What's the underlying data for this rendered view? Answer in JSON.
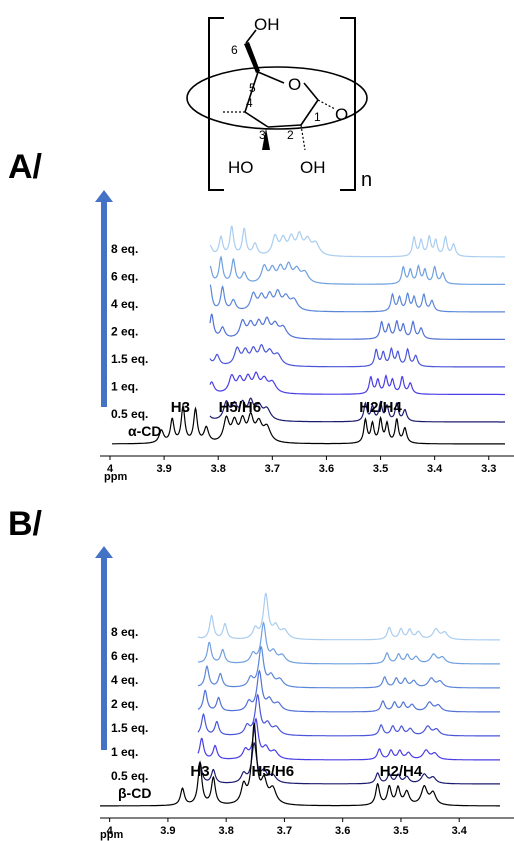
{
  "structure": {
    "labels": [
      "6",
      "OH",
      "5",
      "O",
      "1",
      "O",
      "4",
      "3",
      "2",
      "HO",
      "OH",
      "n"
    ]
  },
  "chart_data": [
    {
      "panel_label": "A/",
      "type": "line",
      "xlabel": "ppm",
      "xlim": [
        4.0,
        3.27
      ],
      "x_reversed": true,
      "x_ticks": [
        "4",
        "3.9",
        "3.8",
        "3.7",
        "3.6",
        "3.5",
        "3.4",
        "3.3"
      ],
      "tick_values": [
        4.0,
        3.9,
        3.8,
        3.7,
        3.6,
        3.5,
        3.4,
        3.3
      ],
      "arrow_color": "#4472C4",
      "series": [
        {
          "name": "α-CD",
          "color": "#000000",
          "shift": 0.0
        },
        {
          "name": "0.5 eq.",
          "color": "#1c1c6e",
          "shift": 0.0
        },
        {
          "name": "1 eq.",
          "color": "#4a3ee6",
          "shift": 0.01
        },
        {
          "name": "1.5 eq.",
          "color": "#4a56d8",
          "shift": 0.02
        },
        {
          "name": "2 eq.",
          "color": "#5272d6",
          "shift": 0.03
        },
        {
          "name": "4 eq.",
          "color": "#5b87d9",
          "shift": 0.05
        },
        {
          "name": "6 eq.",
          "color": "#6fa0e0",
          "shift": 0.07
        },
        {
          "name": "8 eq.",
          "color": "#a9cdf0",
          "shift": 0.09
        }
      ],
      "peak_labels": [
        {
          "text": "H3",
          "ppm": 3.87
        },
        {
          "text": "H5/H6",
          "ppm": 3.76
        },
        {
          "text": "H2/H4",
          "ppm": 3.5
        }
      ]
    },
    {
      "panel_label": "B/",
      "type": "line",
      "xlabel": "ppm",
      "xlim": [
        4.02,
        3.33
      ],
      "x_reversed": true,
      "x_ticks": [
        "4",
        "3.9",
        "3.8",
        "3.7",
        "3.6",
        "3.5",
        "3.4"
      ],
      "tick_values": [
        4.0,
        3.9,
        3.8,
        3.7,
        3.6,
        3.5,
        3.4
      ],
      "arrow_color": "#4472C4",
      "series": [
        {
          "name": "β-CD",
          "color": "#000000",
          "shift": 0.0
        },
        {
          "name": "0.5 eq.",
          "color": "#1c1c6e",
          "shift": 0.0
        },
        {
          "name": "1 eq.",
          "color": "#4a3ee6",
          "shift": 0.003
        },
        {
          "name": "1.5 eq.",
          "color": "#4a56d8",
          "shift": 0.006
        },
        {
          "name": "2 eq.",
          "color": "#5272d6",
          "shift": 0.009
        },
        {
          "name": "4 eq.",
          "color": "#5b87d9",
          "shift": 0.012
        },
        {
          "name": "6 eq.",
          "color": "#6fa0e0",
          "shift": 0.016
        },
        {
          "name": "8 eq.",
          "color": "#a9cdf0",
          "shift": 0.02
        }
      ],
      "peak_labels": [
        {
          "text": "H3",
          "ppm": 3.845
        },
        {
          "text": "H5/H6",
          "ppm": 3.72
        },
        {
          "text": "H2/H4",
          "ppm": 3.5
        }
      ]
    }
  ]
}
